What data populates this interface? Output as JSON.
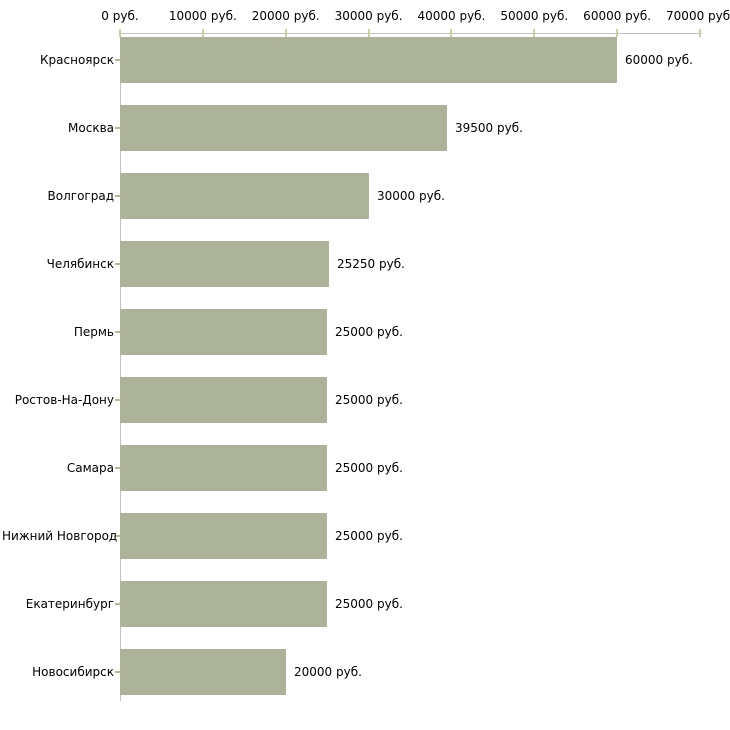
{
  "chart_data": {
    "type": "bar",
    "orientation": "horizontal",
    "title": "",
    "xlabel": "",
    "ylabel": "",
    "unit": "руб.",
    "categories": [
      "Красноярск",
      "Москва",
      "Волгоград",
      "Челябинск",
      "Пермь",
      "Ростов-На-Дону",
      "Самара",
      "Нижний Новгород",
      "Екатеринбург",
      "Новосибирск"
    ],
    "values": [
      60000,
      39500,
      30000,
      25250,
      25000,
      25000,
      25000,
      25000,
      25000,
      20000
    ],
    "value_labels": [
      "60000 руб.",
      "39500 руб.",
      "30000 руб.",
      "25250 руб.",
      "25000 руб.",
      "25000 руб.",
      "25000 руб.",
      "25000 руб.",
      "25000 руб.",
      "20000 руб."
    ],
    "x_tick_values": [
      0,
      10000,
      20000,
      30000,
      40000,
      50000,
      60000,
      70000
    ],
    "x_tick_labels": [
      "0 руб.",
      "10000 руб.",
      "20000 руб.",
      "30000 руб.",
      "40000 руб.",
      "50000 руб.",
      "60000 руб.",
      "70000 руб."
    ],
    "xlim": [
      0,
      70000
    ],
    "grid": false,
    "legend": false,
    "colors": {
      "bar": "#adb399",
      "axis_line": "#c2c2c2",
      "x_tick": "#cdcda3",
      "y_tick": "#b9b99a",
      "text": "#000000",
      "background": "#ffffff"
    }
  }
}
